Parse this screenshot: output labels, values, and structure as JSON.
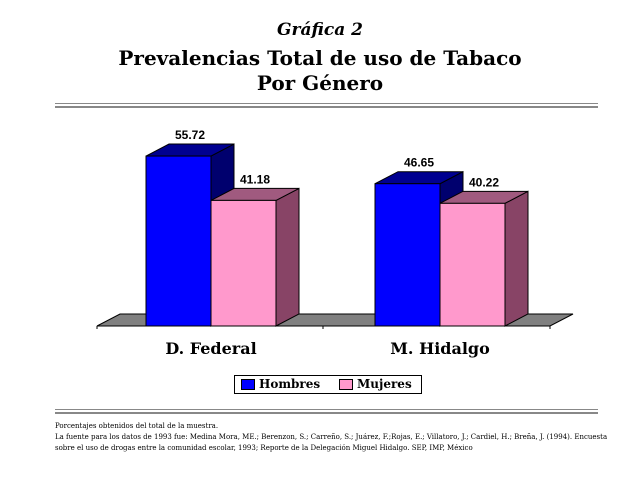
{
  "header": {
    "kicker": "Gráfica 2",
    "title_line1": "Prevalencias Total de uso de Tabaco",
    "title_line2": "Por Género"
  },
  "chart_data": {
    "type": "bar",
    "style": "3d-clustered",
    "categories": [
      "D. Federal",
      "M. Hidalgo"
    ],
    "series": [
      {
        "name": "Hombres",
        "values": [
          55.72,
          46.65
        ],
        "color": "#0000ff",
        "side_color": "#00006e",
        "top_color": "#000090"
      },
      {
        "name": "Mujeres",
        "values": [
          41.18,
          40.22
        ],
        "color": "#ff99cc",
        "side_color": "#884466",
        "top_color": "#a05a7f"
      }
    ],
    "ylim": [
      0,
      60
    ],
    "grid": false,
    "legend_placement": "bottom",
    "floor_color": "#808080"
  },
  "notes": {
    "line1": "Porcentajes obtenidos del total de la muestra.",
    "line2": "La fuente para los datos de 1993 fue: Medina Mora, ME.; Berenzon, S.; Carreño, S.; Juárez, F.;Rojas, E.; Villatoro, J.; Cardiel, H.; Breña, J. (1994). Encuesta",
    "line3": "sobre el uso de drogas entre la comunidad escolar, 1993; Reporte de la Delegación Miguel Hidalgo. SEP, IMP, México"
  }
}
